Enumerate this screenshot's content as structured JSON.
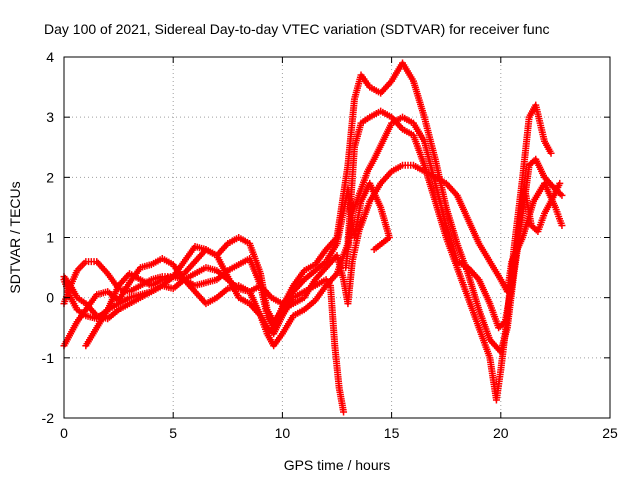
{
  "chart_data": {
    "type": "scatter",
    "title": "Day 100 of 2021, Sidereal Day-to-day VTEC variation (SDTVAR) for receiver func",
    "xlabel": "GPS time / hours",
    "ylabel": "SDTVAR / TECUs",
    "xlim": [
      0,
      25
    ],
    "ylim": [
      -2,
      4
    ],
    "xticks": [
      0,
      5,
      10,
      15,
      20,
      25
    ],
    "yticks": [
      -2,
      -1,
      0,
      1,
      2,
      3,
      4
    ],
    "x_tick_labels": [
      "0",
      "5",
      "10",
      "15",
      "20",
      "25"
    ],
    "y_tick_labels": [
      "-2",
      "-1",
      "0",
      "1",
      "2",
      "3",
      "4"
    ],
    "grid": true,
    "marker": "plus",
    "color": "#ff0000",
    "series": [
      {
        "points": [
          [
            0,
            -0.8
          ],
          [
            0.3,
            -0.6
          ],
          [
            0.6,
            -0.4
          ],
          [
            1,
            -0.2
          ],
          [
            1.5,
            0.05
          ],
          [
            2,
            0.1
          ],
          [
            2.5,
            -0.05
          ],
          [
            3,
            0.25
          ],
          [
            3.5,
            0.5
          ],
          [
            4,
            0.55
          ],
          [
            4.5,
            0.65
          ],
          [
            5,
            0.55
          ],
          [
            5.5,
            0.3
          ],
          [
            6,
            0.2
          ],
          [
            6.5,
            0.25
          ],
          [
            7,
            0.3
          ],
          [
            7.5,
            0.45
          ],
          [
            8,
            0.55
          ],
          [
            8.5,
            0.65
          ],
          [
            9,
            0.2
          ],
          [
            9.3,
            -0.3
          ],
          [
            9.6,
            -0.5
          ],
          [
            10,
            -0.15
          ],
          [
            10.5,
            0.2
          ],
          [
            11,
            0.45
          ],
          [
            11.5,
            0.55
          ],
          [
            12,
            0.8
          ],
          [
            12.5,
            1.0
          ],
          [
            13,
            2.2
          ],
          [
            13.3,
            3.3
          ],
          [
            13.6,
            3.7
          ],
          [
            14,
            3.5
          ],
          [
            14.5,
            3.4
          ],
          [
            15,
            3.6
          ],
          [
            15.5,
            3.9
          ],
          [
            16,
            3.6
          ],
          [
            16.5,
            3.0
          ],
          [
            17,
            2.3
          ],
          [
            17.5,
            1.5
          ],
          [
            18,
            0.9
          ],
          [
            18.5,
            0.4
          ],
          [
            19,
            -0.2
          ],
          [
            19.5,
            -0.7
          ],
          [
            20,
            -0.9
          ],
          [
            20.3,
            -0.5
          ],
          [
            20.6,
            0.4
          ],
          [
            21,
            1.4
          ],
          [
            21.3,
            2.2
          ],
          [
            21.6,
            2.3
          ],
          [
            22,
            2.0
          ],
          [
            22.5,
            1.8
          ],
          [
            22.8,
            1.7
          ]
        ]
      },
      {
        "points": [
          [
            0,
            -0.1
          ],
          [
            0.3,
            0.2
          ],
          [
            0.6,
            0.45
          ],
          [
            1,
            0.6
          ],
          [
            1.5,
            0.6
          ],
          [
            2,
            0.4
          ],
          [
            2.5,
            0.15
          ],
          [
            3,
            0.1
          ],
          [
            3.5,
            0.2
          ],
          [
            4,
            0.3
          ],
          [
            4.5,
            0.35
          ],
          [
            5,
            0.35
          ],
          [
            5.5,
            0.3
          ],
          [
            6,
            0.1
          ],
          [
            6.5,
            -0.1
          ],
          [
            7,
            0.0
          ],
          [
            7.5,
            0.15
          ],
          [
            8,
            0.2
          ],
          [
            8.5,
            0.1
          ],
          [
            9,
            -0.3
          ],
          [
            9.3,
            -0.6
          ],
          [
            9.6,
            -0.8
          ],
          [
            10,
            -0.6
          ],
          [
            10.5,
            -0.3
          ],
          [
            11,
            -0.2
          ],
          [
            11.5,
            -0.05
          ],
          [
            12,
            0.2
          ],
          [
            12.5,
            0.4
          ],
          [
            13,
            0.9
          ],
          [
            13.3,
            2.5
          ],
          [
            13.6,
            2.9
          ],
          [
            14,
            3.0
          ],
          [
            14.5,
            3.1
          ],
          [
            15,
            3.0
          ],
          [
            15.5,
            2.8
          ],
          [
            16,
            2.7
          ],
          [
            16.5,
            2.2
          ],
          [
            17,
            1.6
          ],
          [
            17.5,
            1.0
          ],
          [
            18,
            0.5
          ],
          [
            18.5,
            0.0
          ],
          [
            19,
            -0.5
          ],
          [
            19.5,
            -1.0
          ],
          [
            19.8,
            -1.7
          ],
          [
            20,
            -1.2
          ],
          [
            20.3,
            -0.3
          ],
          [
            20.6,
            0.8
          ],
          [
            21,
            2.0
          ],
          [
            21.3,
            3.0
          ],
          [
            21.6,
            3.2
          ],
          [
            22,
            2.6
          ],
          [
            22.3,
            2.4
          ]
        ]
      },
      {
        "points": [
          [
            0,
            0.3
          ],
          [
            0.3,
            0.0
          ],
          [
            0.6,
            -0.2
          ],
          [
            1,
            -0.3
          ],
          [
            1.5,
            -0.35
          ],
          [
            2,
            -0.2
          ],
          [
            2.5,
            0.2
          ],
          [
            3,
            0.4
          ],
          [
            3.5,
            0.3
          ],
          [
            4,
            0.2
          ],
          [
            4.5,
            0.3
          ],
          [
            5,
            0.35
          ],
          [
            5.5,
            0.4
          ],
          [
            6,
            0.6
          ],
          [
            6.5,
            0.8
          ],
          [
            7,
            0.7
          ],
          [
            7.5,
            0.35
          ],
          [
            8,
            0.0
          ],
          [
            8.5,
            -0.1
          ],
          [
            9,
            -0.3
          ],
          [
            9.3,
            -0.5
          ],
          [
            9.6,
            -0.6
          ],
          [
            10,
            -0.3
          ],
          [
            10.5,
            0.0
          ],
          [
            11,
            0.1
          ],
          [
            11.5,
            0.2
          ],
          [
            12,
            0.3
          ],
          [
            12.2,
            0.2
          ],
          [
            12.4,
            -0.8
          ],
          [
            12.6,
            -1.5
          ],
          [
            12.8,
            -1.9
          ]
        ]
      },
      {
        "points": [
          [
            0,
            0.35
          ],
          [
            0.3,
            0.2
          ],
          [
            0.6,
            0.0
          ],
          [
            1,
            -0.1
          ],
          [
            1.5,
            -0.3
          ],
          [
            2,
            -0.35
          ],
          [
            2.5,
            -0.2
          ],
          [
            3,
            -0.1
          ],
          [
            3.5,
            0.0
          ],
          [
            4,
            0.1
          ],
          [
            4.5,
            0.2
          ],
          [
            5,
            0.35
          ],
          [
            5.5,
            0.6
          ],
          [
            6,
            0.85
          ],
          [
            6.5,
            0.8
          ],
          [
            7,
            0.7
          ],
          [
            7.5,
            0.9
          ],
          [
            8,
            1.0
          ],
          [
            8.5,
            0.9
          ],
          [
            9,
            0.4
          ],
          [
            9.3,
            -0.2
          ],
          [
            9.6,
            -0.4
          ],
          [
            10,
            -0.2
          ],
          [
            10.5,
            -0.1
          ],
          [
            11,
            0.0
          ],
          [
            11.5,
            0.3
          ],
          [
            12,
            0.5
          ],
          [
            12.5,
            0.7
          ],
          [
            12.8,
            0.3
          ],
          [
            13,
            -0.1
          ],
          [
            13.2,
            0.6
          ],
          [
            13.5,
            1.1
          ],
          [
            14,
            1.6
          ],
          [
            14.5,
            1.9
          ],
          [
            15,
            2.1
          ],
          [
            15.5,
            2.2
          ],
          [
            16,
            2.2
          ],
          [
            16.5,
            2.1
          ],
          [
            17,
            2.0
          ],
          [
            17.5,
            1.9
          ],
          [
            18,
            1.7
          ],
          [
            18.5,
            1.3
          ],
          [
            19,
            0.9
          ],
          [
            19.5,
            0.6
          ],
          [
            20,
            0.3
          ],
          [
            20.3,
            0.1
          ],
          [
            20.5,
            0.6
          ],
          [
            21,
            1.0
          ],
          [
            21.5,
            1.6
          ],
          [
            22,
            1.9
          ],
          [
            22.5,
            1.5
          ],
          [
            22.8,
            1.2
          ]
        ]
      },
      {
        "points": [
          [
            1,
            -0.8
          ],
          [
            1.5,
            -0.5
          ],
          [
            2,
            -0.2
          ],
          [
            2.5,
            -0.1
          ],
          [
            3,
            0.0
          ],
          [
            3.5,
            0.05
          ],
          [
            4,
            0.1
          ],
          [
            4.5,
            0.2
          ],
          [
            5,
            0.15
          ],
          [
            5.5,
            0.3
          ],
          [
            6,
            0.4
          ],
          [
            6.5,
            0.5
          ],
          [
            7,
            0.45
          ],
          [
            7.5,
            0.3
          ],
          [
            8,
            0.15
          ],
          [
            8.5,
            0.1
          ],
          [
            9,
            0.2
          ],
          [
            9.5,
            0.0
          ],
          [
            10,
            -0.1
          ],
          [
            10.5,
            0.1
          ],
          [
            11,
            0.3
          ],
          [
            11.5,
            0.45
          ],
          [
            12,
            0.6
          ],
          [
            12.5,
            0.9
          ],
          [
            13,
            1.8
          ],
          [
            13.3,
            1.0
          ],
          [
            13.6,
            1.6
          ],
          [
            14,
            1.9
          ],
          [
            14.5,
            1.5
          ],
          [
            14.9,
            1.0
          ],
          [
            14.2,
            0.8
          ]
        ]
      },
      {
        "points": [
          [
            12.9,
            0.5
          ],
          [
            13.2,
            1.4
          ],
          [
            13.5,
            1.7
          ],
          [
            13.9,
            2.1
          ],
          [
            14.2,
            2.3
          ],
          [
            14.6,
            2.6
          ],
          [
            15,
            2.9
          ],
          [
            15.5,
            3.0
          ],
          [
            16,
            2.9
          ],
          [
            16.5,
            2.6
          ],
          [
            17,
            1.9
          ],
          [
            17.5,
            1.2
          ],
          [
            18,
            0.6
          ],
          [
            18.5,
            0.5
          ],
          [
            19,
            0.3
          ],
          [
            19.5,
            -0.1
          ],
          [
            19.9,
            -0.5
          ],
          [
            20.2,
            -0.4
          ],
          [
            20.5,
            0.2
          ],
          [
            20.8,
            1.0
          ],
          [
            21.1,
            1.8
          ],
          [
            21.4,
            1.2
          ],
          [
            21.7,
            1.1
          ],
          [
            22,
            1.4
          ],
          [
            22.3,
            1.6
          ],
          [
            22.7,
            1.9
          ]
        ]
      }
    ]
  }
}
